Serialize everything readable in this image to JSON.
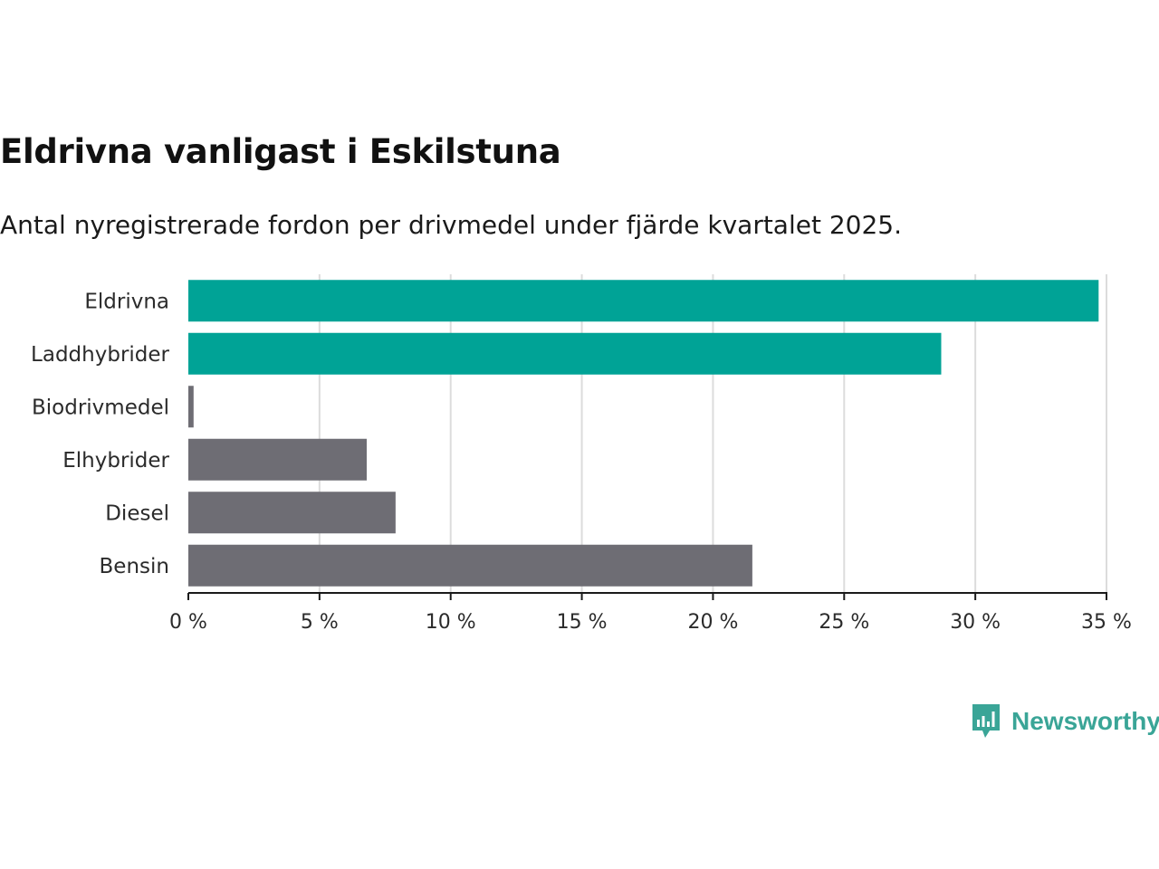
{
  "title": "Eldrivna vanligast i Eskilstuna",
  "subtitle": "Antal nyregistrerade fordon per drivmedel under fjärde kvartalet 2025.",
  "brand": {
    "name": "Newsworthy",
    "icon": "newsworthy-logo-icon",
    "color": "#3aa597"
  },
  "chart_data": {
    "type": "bar",
    "orientation": "horizontal",
    "categories": [
      "Eldrivna",
      "Laddhybrider",
      "Biodrivmedel",
      "Elhybrider",
      "Diesel",
      "Bensin"
    ],
    "values": [
      34.7,
      28.7,
      0.2,
      6.8,
      7.9,
      21.5
    ],
    "colors": [
      "#00a396",
      "#00a396",
      "#6e6d74",
      "#6e6d74",
      "#6e6d74",
      "#6e6d74"
    ],
    "xlim": [
      0,
      35
    ],
    "xticks": [
      0,
      5,
      10,
      15,
      20,
      25,
      30,
      35
    ],
    "tick_labels": [
      "0 %",
      "5 %",
      "10 %",
      "15 %",
      "20 %",
      "25 %",
      "30 %",
      "35 %"
    ],
    "xlabel": "",
    "ylabel": "",
    "grid": true
  }
}
